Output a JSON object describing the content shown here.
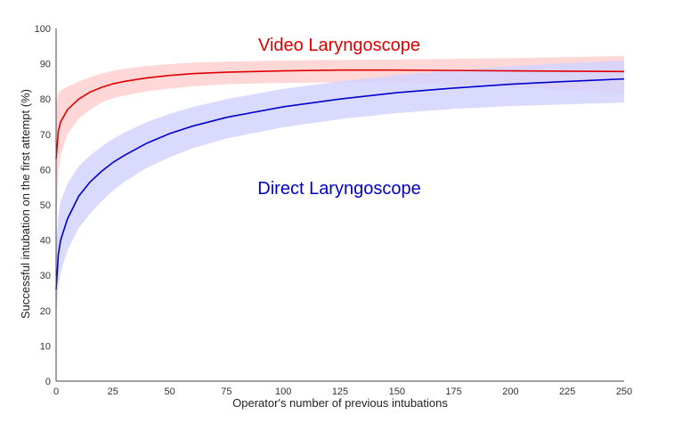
{
  "chart_data": {
    "type": "line",
    "title": "",
    "xlabel": "Operator's number of previous intubations",
    "ylabel": "Successful intubation on the first attempt (%)",
    "xlim": [
      0,
      250
    ],
    "ylim": [
      0,
      100
    ],
    "x_ticks": [
      "0",
      "25",
      "50",
      "75",
      "100",
      "125",
      "150",
      "175",
      "200",
      "225",
      "250"
    ],
    "y_ticks": [
      "0",
      "10",
      "20",
      "30",
      "40",
      "50",
      "60",
      "70",
      "80",
      "90",
      "100"
    ],
    "grid": false,
    "legend": "inline labels",
    "x": [
      0,
      1,
      2,
      5,
      10,
      15,
      20,
      25,
      30,
      40,
      50,
      60,
      75,
      100,
      125,
      150,
      175,
      200,
      225,
      250
    ],
    "series": [
      {
        "name": "Video Laryngoscope",
        "color": "#e00000",
        "band_color": "#ffd0d0",
        "values": [
          63,
          71,
          73.5,
          77,
          80,
          82,
          83.3,
          84.3,
          85,
          86,
          86.7,
          87.2,
          87.6,
          88,
          88.2,
          88.2,
          88.1,
          88,
          87.9,
          87.8
        ],
        "lower": [
          44,
          59,
          64,
          70,
          74.5,
          77,
          79,
          80.2,
          81,
          82.2,
          83,
          83.6,
          84.2,
          84.6,
          84.7,
          84.5,
          84,
          83.3,
          82.5,
          81.5
        ],
        "upper": [
          78,
          81.8,
          82.5,
          83.5,
          85,
          86.2,
          87.2,
          88,
          88.6,
          89.4,
          89.9,
          90.3,
          90.6,
          90.9,
          91.1,
          91.2,
          91.4,
          91.6,
          91.9,
          92.2
        ]
      },
      {
        "name": "Direct Laryngoscope",
        "color": "#0000cc",
        "band_color": "#d4d4ff",
        "values": [
          26,
          36,
          40,
          46,
          52.5,
          56.5,
          59.5,
          62,
          64,
          67.5,
          70.2,
          72.3,
          74.8,
          77.8,
          80,
          81.8,
          83.1,
          84.2,
          85,
          85.7
        ],
        "lower": [
          18,
          27,
          31,
          37,
          43.5,
          47.5,
          51,
          54,
          56.5,
          60.5,
          63.5,
          66,
          68.8,
          72,
          74.3,
          76,
          77.2,
          78,
          78.5,
          79
        ],
        "upper": [
          38,
          47,
          51,
          56,
          61,
          64,
          66.5,
          68.7,
          70.5,
          73.5,
          75.8,
          77.7,
          80,
          82.9,
          85,
          86.8,
          88.2,
          89.3,
          90.2,
          90.9
        ]
      }
    ]
  }
}
